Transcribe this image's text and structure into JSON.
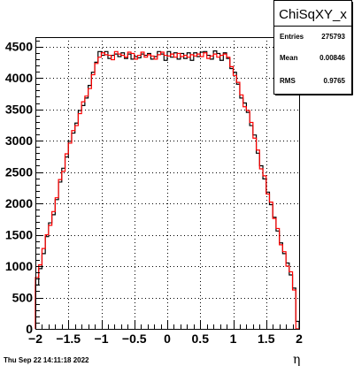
{
  "chart_data": {
    "type": "histogram",
    "title": "",
    "xlabel": "η",
    "ylabel": "",
    "xlim": [
      -2,
      2
    ],
    "ylim": [
      0,
      4650
    ],
    "grid": true,
    "x_ticks": [
      -2,
      -1.5,
      -1,
      -0.5,
      0,
      0.5,
      1,
      1.5,
      2
    ],
    "x_tick_labels": [
      "−2",
      "−1.5",
      "−1",
      "−0.5",
      "0",
      "0.5",
      "1",
      "1.5",
      "2"
    ],
    "y_ticks": [
      0,
      500,
      1000,
      1500,
      2000,
      2500,
      3000,
      3500,
      4000,
      4500
    ],
    "y_tick_labels": [
      "0",
      "500",
      "1000",
      "1500",
      "2000",
      "2500",
      "3000",
      "3500",
      "4000",
      "4500"
    ],
    "bin_edges_range": [
      -2,
      2
    ],
    "n_bins": 80,
    "series": [
      {
        "color": "#000000",
        "values": [
          700,
          960,
          1200,
          1470,
          1690,
          1820,
          2060,
          2340,
          2560,
          2740,
          2990,
          3120,
          3280,
          3480,
          3560,
          3680,
          3880,
          4090,
          4250,
          4420,
          4360,
          4420,
          4310,
          4360,
          4380,
          4340,
          4400,
          4310,
          4380,
          4300,
          4340,
          4320,
          4380,
          4360,
          4390,
          4300,
          4340,
          4420,
          4380,
          4280,
          4420,
          4330,
          4400,
          4300,
          4390,
          4310,
          4400,
          4280,
          4400,
          4340,
          4410,
          4420,
          4360,
          4300,
          4430,
          4390,
          4280,
          4400,
          4310,
          4150,
          4090,
          3900,
          3680,
          3600,
          3450,
          3240,
          3090,
          2800,
          2600,
          2390,
          2180,
          1980,
          1780,
          1560,
          1370,
          1200,
          1050,
          860,
          650,
          120
        ]
      },
      {
        "color": "#ff0000",
        "values": [
          820,
          1020,
          1280,
          1500,
          1650,
          1870,
          2090,
          2380,
          2510,
          2790,
          2960,
          3160,
          3240,
          3430,
          3620,
          3710,
          3830,
          4050,
          4230,
          4330,
          4400,
          4370,
          4360,
          4290,
          4420,
          4380,
          4360,
          4330,
          4410,
          4390,
          4300,
          4360,
          4410,
          4330,
          4370,
          4350,
          4300,
          4370,
          4410,
          4360,
          4350,
          4380,
          4330,
          4390,
          4340,
          4360,
          4330,
          4370,
          4350,
          4380,
          4340,
          4400,
          4310,
          4350,
          4380,
          4330,
          4360,
          4380,
          4330,
          4180,
          4040,
          3930,
          3730,
          3540,
          3480,
          3290,
          3040,
          2850,
          2550,
          2440,
          2150,
          2020,
          1760,
          1600,
          1340,
          1230,
          1000,
          910,
          620,
          0
        ]
      }
    ]
  },
  "stats_box": {
    "title": "ChiSqXY_x",
    "rows": [
      {
        "label": "Entries",
        "value": "275793"
      },
      {
        "label": "Mean",
        "value": "0.00846"
      },
      {
        "label": "RMS",
        "value": "0.9765"
      }
    ]
  },
  "footer": {
    "timestamp": "Thu Sep 22 14:11:18 2022"
  }
}
